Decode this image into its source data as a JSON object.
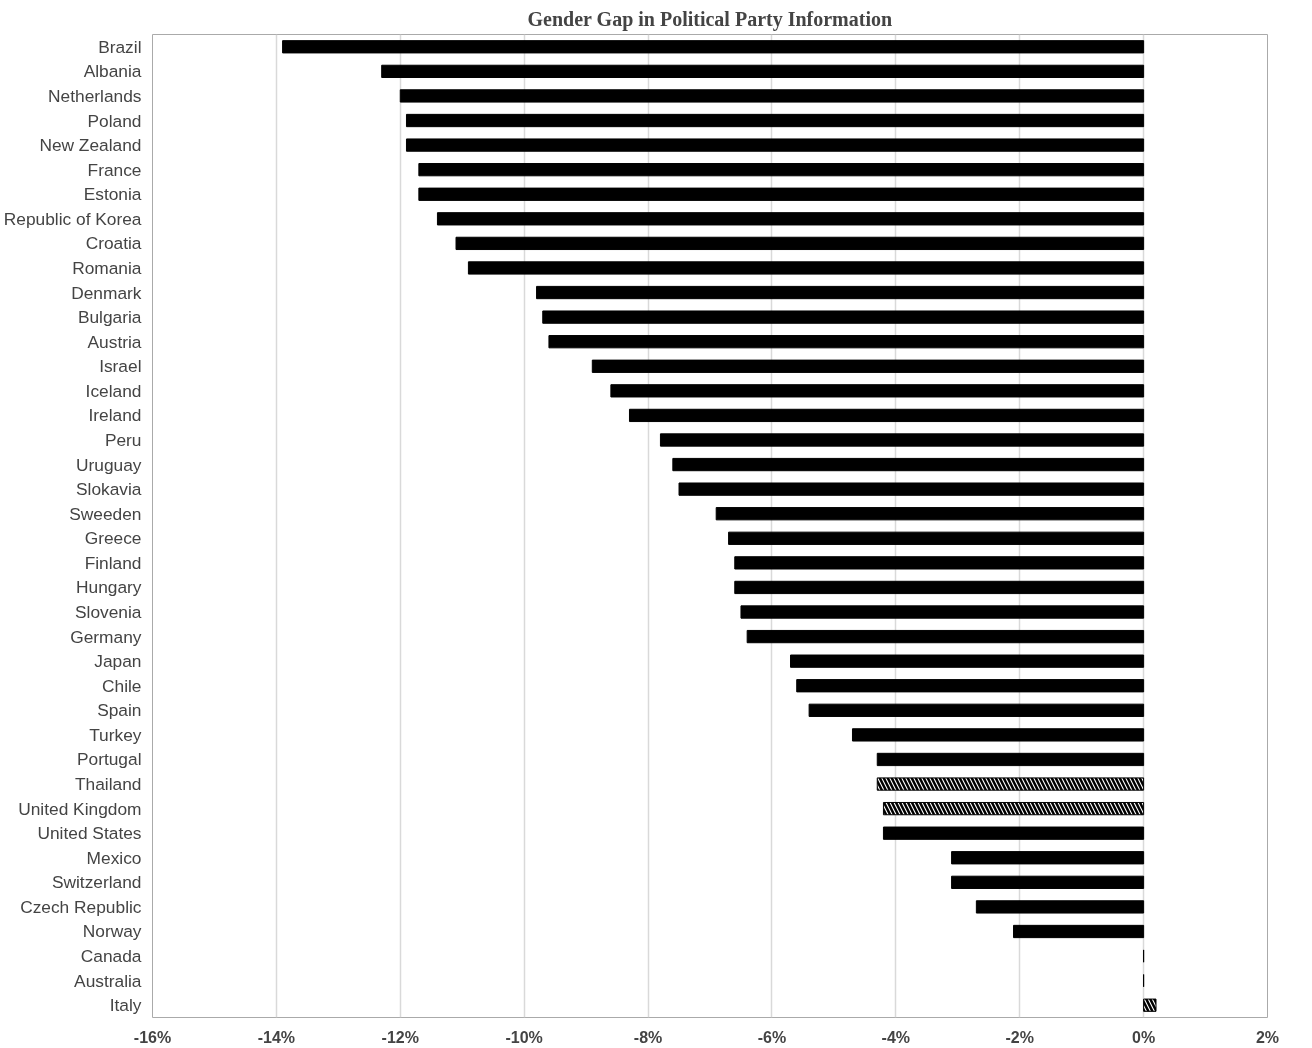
{
  "chart_data": {
    "type": "bar",
    "orientation": "horizontal",
    "title": "Gender Gap in Political Party Information",
    "categories": [
      "Brazil",
      "Albania",
      "Netherlands",
      "Poland",
      "New Zealand",
      "France",
      "Estonia",
      "Republic of Korea",
      "Croatia",
      "Romania",
      "Denmark",
      "Bulgaria",
      "Austria",
      "Israel",
      "Iceland",
      "Ireland",
      "Peru",
      "Uruguay",
      "Slokavia",
      "Sweeden",
      "Greece",
      "Finland",
      "Hungary",
      "Slovenia",
      "Germany",
      "Japan",
      "Chile",
      "Spain",
      "Turkey",
      "Portugal",
      "Thailand",
      "United Kingdom",
      "United States",
      "Mexico",
      "Switzerland",
      "Czech Republic",
      "Norway",
      "Canada",
      "Australia",
      "Italy"
    ],
    "values": [
      -13.9,
      -12.3,
      -12.0,
      -11.9,
      -11.9,
      -11.7,
      -11.7,
      -11.4,
      -11.1,
      -10.9,
      -9.8,
      -9.7,
      -9.6,
      -8.9,
      -8.6,
      -8.3,
      -7.8,
      -7.6,
      -7.5,
      -6.9,
      -6.7,
      -6.6,
      -6.6,
      -6.5,
      -6.4,
      -5.7,
      -5.6,
      -5.4,
      -4.7,
      -4.3,
      -4.3,
      -4.2,
      -4.2,
      -3.1,
      -3.1,
      -2.7,
      -2.1,
      0,
      0,
      0.2
    ],
    "colors": [
      "#000000",
      "#000000",
      "#000000",
      "#000000",
      "#000000",
      "#000000",
      "#000000",
      "#000000",
      "#000000",
      "#000000",
      "#000000",
      "#000000",
      "#000000",
      "#000000",
      "#000000",
      "#000000",
      "#000000",
      "#000000",
      "#000000",
      "#000000",
      "#000000",
      "#000000",
      "#000000",
      "#000000",
      "#000000",
      "#000000",
      "#000000",
      "#000000",
      "#000000",
      "#000000",
      "#ffffff",
      "#ffffff",
      "#000000",
      "#000000",
      "#000000",
      "#000000",
      "#000000",
      "#000000",
      "#000000",
      "#ffffff"
    ],
    "xlim": [
      -16,
      2
    ],
    "xticks": [
      {
        "value": -16,
        "label": "-16%"
      },
      {
        "value": -14,
        "label": "-14%"
      },
      {
        "value": -12,
        "label": "-12%"
      },
      {
        "value": -10,
        "label": "-10%"
      },
      {
        "value": -8,
        "label": "-8%"
      },
      {
        "value": -6,
        "label": "-6%"
      },
      {
        "value": -4,
        "label": "-4%"
      },
      {
        "value": -2,
        "label": "-2%"
      },
      {
        "value": 0,
        "label": "0%"
      },
      {
        "value": 2,
        "label": "2%"
      }
    ],
    "grid": "x"
  }
}
